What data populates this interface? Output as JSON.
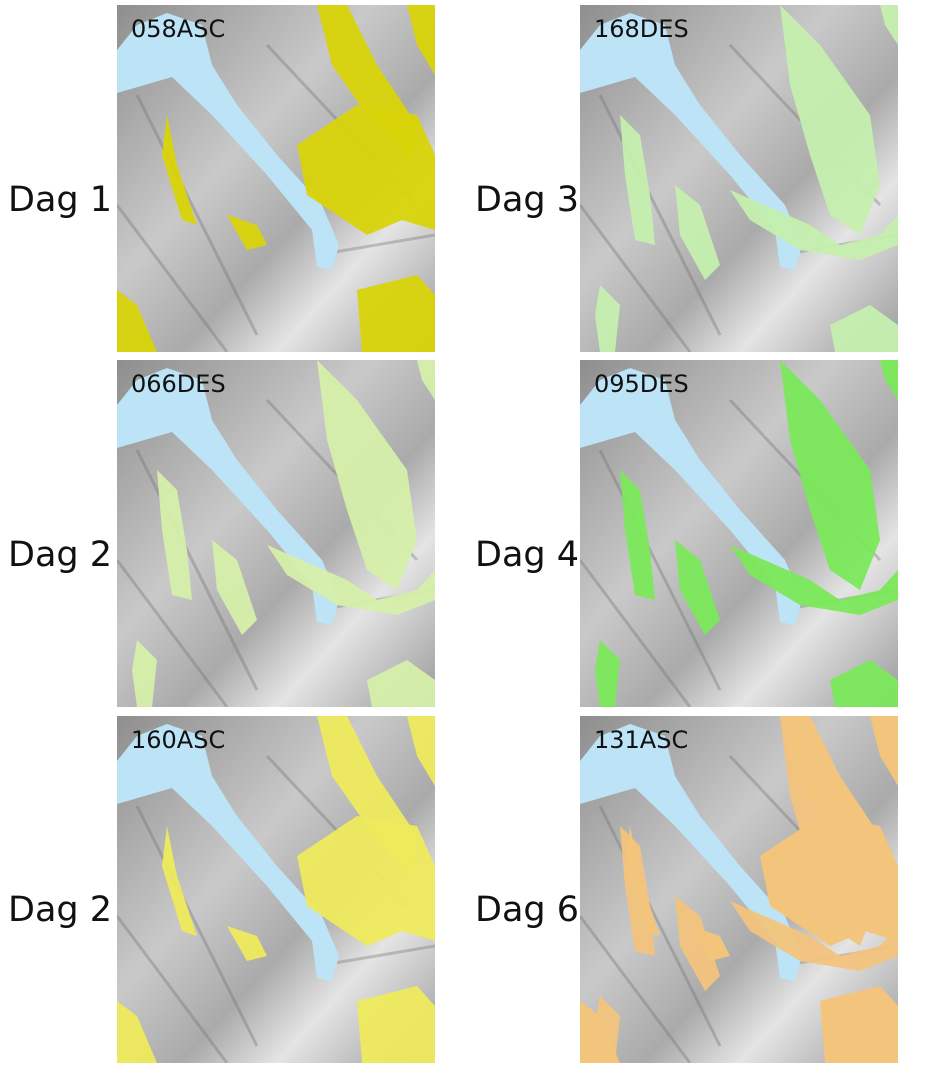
{
  "panels": [
    {
      "day": "Dag 1",
      "code": "058ASC"
    },
    {
      "day": "Dag 3",
      "code": "168DES"
    },
    {
      "day": "Dag 2",
      "code": "066DES"
    },
    {
      "day": "Dag 4",
      "code": "095DES"
    },
    {
      "day": "Dag 2",
      "code": "160ASC"
    },
    {
      "day": "Dag 6",
      "code": "131ASC"
    }
  ]
}
